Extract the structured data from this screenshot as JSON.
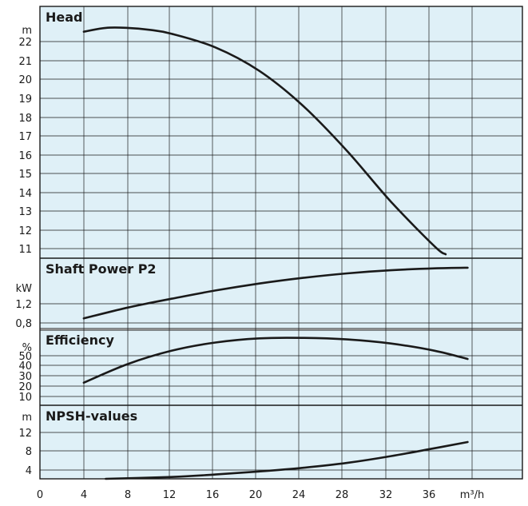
{
  "chart_data": [
    {
      "type": "line",
      "title": "Head",
      "y_unit": "m",
      "yticks": [
        "22",
        "21",
        "20",
        "19",
        "18",
        "17",
        "16",
        "15",
        "14",
        "13",
        "12",
        "11"
      ],
      "ylim": [
        10.3,
        23.2
      ],
      "x": [
        4,
        6,
        8,
        10,
        12,
        16,
        20,
        24,
        28,
        32,
        36,
        37
      ],
      "values": [
        21.9,
        22.1,
        22.1,
        22.0,
        21.8,
        21.1,
        19.9,
        18.1,
        15.8,
        13.2,
        10.9,
        10.5
      ]
    },
    {
      "type": "line",
      "title": "Shaft Power P2",
      "y_unit": "kW",
      "yticks": [
        "1,2",
        "0,8"
      ],
      "ylim": [
        0.76,
        1.87
      ],
      "x": [
        4,
        8,
        12,
        16,
        20,
        24,
        28,
        32,
        36,
        39
      ],
      "values": [
        0.92,
        1.09,
        1.23,
        1.36,
        1.47,
        1.56,
        1.63,
        1.68,
        1.71,
        1.72
      ]
    },
    {
      "type": "line",
      "title": "Efficiency",
      "y_unit": "%",
      "yticks": [
        "50",
        "40",
        "30",
        "20",
        "10"
      ],
      "ylim": [
        5,
        78
      ],
      "x": [
        4,
        8,
        12,
        16,
        20,
        24,
        28,
        32,
        36,
        39
      ],
      "values": [
        27,
        45,
        58,
        66,
        70,
        70.5,
        69,
        65,
        58,
        50
      ]
    },
    {
      "type": "line",
      "title": "NPSH-values",
      "y_unit": "m",
      "yticks": [
        "12",
        "8",
        "4"
      ],
      "ylim": [
        2,
        14
      ],
      "x": [
        6,
        12,
        16,
        20,
        24,
        28,
        32,
        36,
        39
      ],
      "values": [
        2.0,
        2.3,
        2.7,
        3.2,
        3.8,
        4.6,
        5.7,
        7.0,
        8.0
      ]
    }
  ],
  "x_axis": {
    "ticks": [
      "0",
      "4",
      "8",
      "12",
      "16",
      "20",
      "24",
      "28",
      "32",
      "36"
    ],
    "unit": "m³/h",
    "xlim": [
      0,
      44
    ]
  },
  "colors": {
    "panel_bg": "#dff0f7",
    "grid": "#1a1a1a",
    "curve": "#1a1a1a"
  }
}
